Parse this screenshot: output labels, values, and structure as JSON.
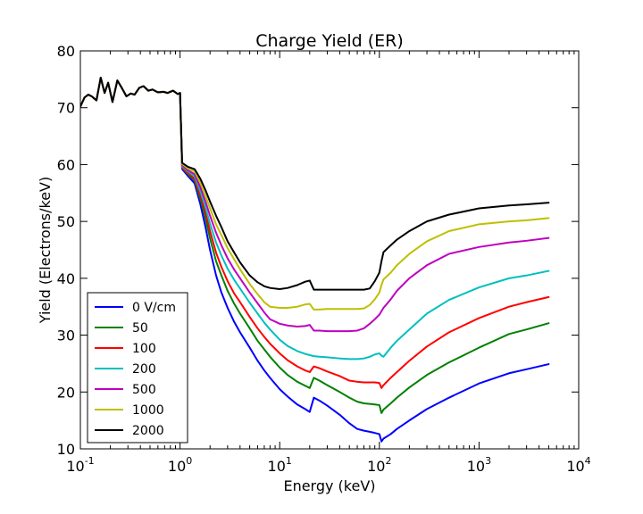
{
  "chart_data": {
    "type": "line",
    "title": "Charge Yield (ER)",
    "xlabel": "Energy (keV)",
    "ylabel": "Yield (Electrons/keV)",
    "xscale": "log",
    "xlim": [
      0.1,
      10000
    ],
    "ylim": [
      10,
      80
    ],
    "grid": false,
    "legend_position": "lower-left",
    "x_ticks": [
      {
        "value": 0.1,
        "base": "10",
        "exp": "-1"
      },
      {
        "value": 1,
        "base": "10",
        "exp": "0"
      },
      {
        "value": 10,
        "base": "10",
        "exp": "1"
      },
      {
        "value": 100,
        "base": "10",
        "exp": "2"
      },
      {
        "value": 1000,
        "base": "10",
        "exp": "3"
      },
      {
        "value": 10000,
        "base": "10",
        "exp": "4"
      }
    ],
    "y_ticks": [
      {
        "value": 10,
        "label": "10"
      },
      {
        "value": 20,
        "label": "20"
      },
      {
        "value": 30,
        "label": "30"
      },
      {
        "value": 40,
        "label": "40"
      },
      {
        "value": 50,
        "label": "50"
      },
      {
        "value": 60,
        "label": "60"
      },
      {
        "value": 70,
        "label": "70"
      },
      {
        "value": 80,
        "label": "80"
      }
    ],
    "shared_low_energy": {
      "x": [
        0.1,
        0.11,
        0.12,
        0.13,
        0.145,
        0.16,
        0.175,
        0.19,
        0.21,
        0.235,
        0.26,
        0.29,
        0.32,
        0.35,
        0.39,
        0.43,
        0.48,
        0.53,
        0.6,
        0.68,
        0.75,
        0.85,
        0.95,
        1.0
      ],
      "y": [
        70.2,
        71.8,
        72.3,
        72.0,
        71.3,
        75.3,
        72.6,
        74.4,
        71.0,
        74.8,
        73.5,
        72.0,
        72.5,
        72.3,
        73.5,
        73.8,
        73.0,
        73.2,
        72.7,
        72.8,
        72.6,
        73.0,
        72.4,
        72.6
      ]
    },
    "series": [
      {
        "name": "0 V/cm",
        "color": "#0000ff",
        "x": [
          1.05,
          1.2,
          1.4,
          1.6,
          1.8,
          2.0,
          2.3,
          2.6,
          3.0,
          3.5,
          4,
          5,
          6,
          7,
          8,
          10,
          12,
          15,
          18,
          20,
          22,
          25,
          30,
          40,
          50,
          60,
          70,
          80,
          90,
          100,
          105,
          110,
          130,
          150,
          200,
          300,
          500,
          1000,
          2000,
          3000,
          5000
        ],
        "y": [
          59.2,
          58.0,
          56.7,
          53.0,
          49.0,
          45.0,
          40.5,
          37.5,
          34.8,
          32.3,
          30.5,
          27.8,
          25.5,
          23.8,
          22.5,
          20.5,
          19.2,
          17.8,
          17.0,
          16.5,
          19.0,
          18.5,
          17.6,
          16.0,
          14.5,
          13.5,
          13.2,
          13.0,
          12.8,
          12.6,
          11.3,
          11.8,
          12.6,
          13.5,
          15.0,
          17.0,
          19.0,
          21.5,
          23.3,
          24.0,
          24.9
        ]
      },
      {
        "name": "50",
        "color": "#008000",
        "x": [
          1.05,
          1.2,
          1.4,
          1.6,
          1.8,
          2.0,
          2.3,
          2.6,
          3.0,
          3.5,
          4,
          5,
          6,
          7,
          8,
          10,
          12,
          15,
          18,
          20,
          22,
          25,
          30,
          40,
          50,
          60,
          70,
          80,
          90,
          100,
          105,
          110,
          130,
          150,
          200,
          300,
          500,
          1000,
          2000,
          3000,
          5000
        ],
        "y": [
          59.4,
          58.3,
          57.2,
          54.0,
          50.5,
          47.0,
          43.0,
          40.5,
          37.8,
          35.5,
          33.8,
          31.2,
          29.0,
          27.5,
          26.2,
          24.3,
          23.0,
          21.8,
          21.1,
          20.7,
          22.5,
          22.0,
          21.2,
          20.0,
          19.0,
          18.3,
          18.0,
          17.9,
          17.8,
          17.7,
          16.3,
          16.9,
          18.0,
          19.0,
          20.8,
          23.0,
          25.2,
          27.8,
          30.2,
          31.0,
          32.1
        ]
      },
      {
        "name": "100",
        "color": "#ff0000",
        "x": [
          1.05,
          1.2,
          1.4,
          1.6,
          1.8,
          2.0,
          2.3,
          2.6,
          3.0,
          3.5,
          4,
          5,
          6,
          7,
          8,
          10,
          12,
          15,
          18,
          20,
          22,
          25,
          30,
          40,
          50,
          60,
          70,
          80,
          90,
          100,
          105,
          110,
          130,
          150,
          200,
          300,
          500,
          1000,
          2000,
          3000,
          5000
        ],
        "y": [
          59.5,
          58.5,
          57.5,
          54.6,
          51.5,
          48.3,
          44.5,
          42.0,
          39.5,
          37.3,
          35.8,
          33.2,
          31.2,
          29.7,
          28.5,
          26.8,
          25.6,
          24.5,
          23.8,
          23.5,
          24.5,
          24.2,
          23.6,
          22.8,
          22.0,
          21.8,
          21.7,
          21.7,
          21.7,
          21.6,
          20.7,
          21.2,
          22.5,
          23.5,
          25.5,
          28.0,
          30.5,
          33.0,
          35.0,
          35.8,
          36.7
        ]
      },
      {
        "name": "200",
        "color": "#00bfbf",
        "x": [
          1.05,
          1.2,
          1.4,
          1.6,
          1.8,
          2.0,
          2.3,
          2.6,
          3.0,
          3.5,
          4,
          5,
          6,
          7,
          8,
          10,
          12,
          15,
          18,
          20,
          22,
          25,
          30,
          40,
          50,
          60,
          70,
          80,
          90,
          100,
          105,
          110,
          130,
          150,
          200,
          300,
          500,
          1000,
          2000,
          3000,
          5000
        ],
        "y": [
          59.7,
          58.8,
          57.9,
          55.3,
          52.5,
          49.6,
          46.3,
          44.0,
          41.7,
          39.7,
          38.2,
          35.7,
          33.8,
          32.2,
          31.0,
          29.2,
          28.1,
          27.2,
          26.7,
          26.5,
          26.3,
          26.2,
          26.1,
          25.9,
          25.8,
          25.8,
          25.9,
          26.2,
          26.6,
          26.8,
          26.4,
          26.2,
          27.8,
          29.0,
          31.0,
          33.8,
          36.2,
          38.4,
          40.0,
          40.5,
          41.3
        ]
      },
      {
        "name": "500",
        "color": "#bf00bf",
        "x": [
          1.05,
          1.2,
          1.4,
          1.6,
          1.8,
          2.0,
          2.3,
          2.6,
          3.0,
          3.5,
          4,
          5,
          6,
          7,
          8,
          10,
          12,
          15,
          18,
          20,
          22,
          25,
          30,
          40,
          50,
          60,
          70,
          80,
          90,
          100,
          110,
          130,
          150,
          200,
          300,
          500,
          1000,
          2000,
          3000,
          5000
        ],
        "y": [
          59.9,
          59.0,
          58.3,
          56.0,
          53.5,
          51.0,
          48.0,
          45.8,
          43.5,
          41.5,
          40.0,
          37.5,
          35.6,
          34.0,
          32.8,
          32.0,
          31.7,
          31.5,
          31.6,
          31.8,
          30.8,
          30.8,
          30.7,
          30.7,
          30.7,
          30.8,
          31.2,
          32.0,
          32.8,
          33.6,
          34.8,
          36.3,
          37.8,
          40.0,
          42.3,
          44.3,
          45.5,
          46.3,
          46.6,
          47.1
        ]
      },
      {
        "name": "1000",
        "color": "#bfbf00",
        "x": [
          1.05,
          1.2,
          1.4,
          1.6,
          1.8,
          2.0,
          2.3,
          2.6,
          3.0,
          3.5,
          4,
          5,
          6,
          7,
          8,
          10,
          12,
          15,
          18,
          20,
          22,
          25,
          30,
          40,
          50,
          60,
          70,
          80,
          90,
          100,
          105,
          110,
          130,
          150,
          200,
          300,
          500,
          1000,
          2000,
          3000,
          5000
        ],
        "y": [
          60.1,
          59.3,
          58.8,
          56.8,
          54.5,
          52.3,
          49.5,
          47.6,
          45.3,
          43.3,
          41.6,
          39.0,
          37.2,
          35.8,
          35.0,
          34.8,
          34.8,
          35.0,
          35.4,
          35.5,
          34.5,
          34.5,
          34.6,
          34.6,
          34.6,
          34.6,
          34.7,
          35.3,
          36.3,
          37.5,
          38.8,
          39.8,
          41.0,
          42.3,
          44.3,
          46.5,
          48.3,
          49.5,
          50.0,
          50.2,
          50.6
        ]
      },
      {
        "name": "2000",
        "color": "#000000",
        "x": [
          1.05,
          1.2,
          1.4,
          1.6,
          1.8,
          2.0,
          2.3,
          2.6,
          3.0,
          3.5,
          4,
          5,
          6,
          7,
          8,
          10,
          12,
          15,
          18,
          20,
          22,
          25,
          30,
          40,
          50,
          60,
          70,
          80,
          90,
          100,
          105,
          110,
          130,
          150,
          200,
          300,
          500,
          1000,
          2000,
          3000,
          5000
        ],
        "y": [
          60.3,
          59.6,
          59.2,
          57.5,
          55.5,
          53.5,
          51.0,
          49.0,
          46.5,
          44.5,
          42.8,
          40.5,
          39.3,
          38.6,
          38.3,
          38.1,
          38.3,
          38.8,
          39.4,
          39.6,
          38.0,
          38.0,
          38.0,
          38.0,
          38.0,
          38.0,
          38.0,
          38.2,
          39.5,
          41.0,
          43.0,
          44.6,
          45.8,
          46.8,
          48.3,
          50.0,
          51.2,
          52.3,
          52.8,
          53.0,
          53.3
        ]
      }
    ]
  }
}
